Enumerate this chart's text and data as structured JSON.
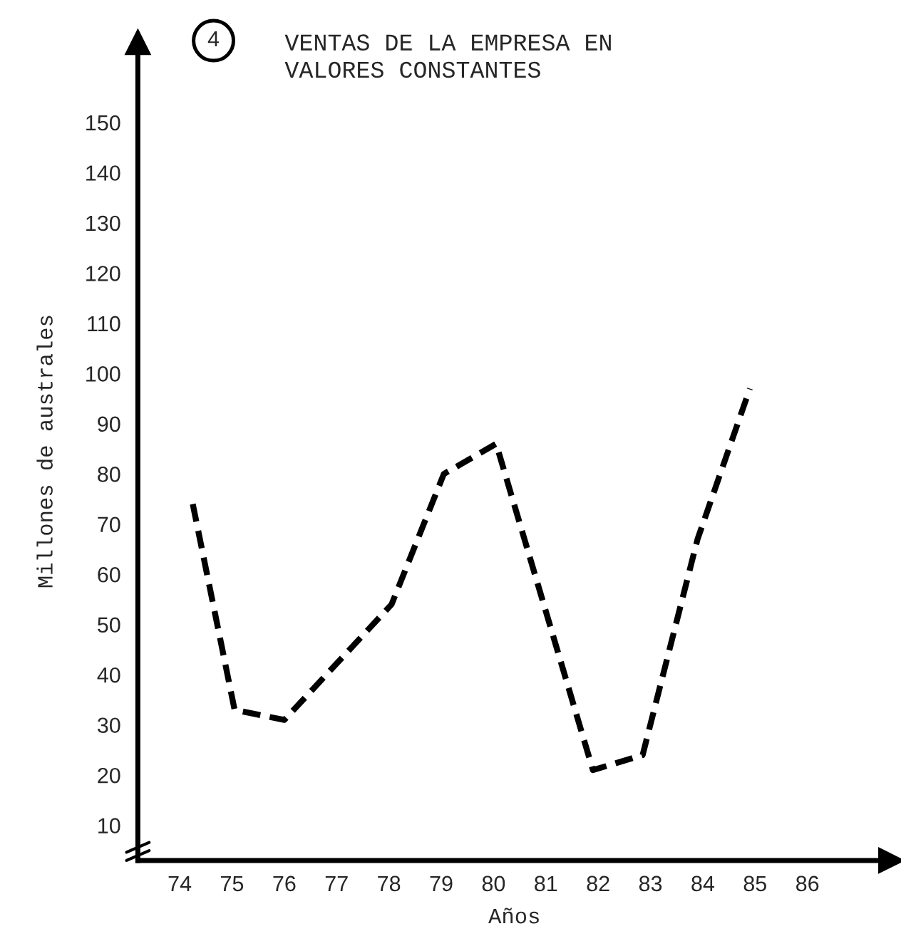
{
  "chart_data": {
    "type": "line",
    "title": "VENTAS DE LA EMPRESA EN\nVALORES CONSTANTES",
    "annotations": [
      "4"
    ],
    "xlabel": "Años",
    "ylabel": "Millones de australes",
    "x": [
      74.25,
      75.05,
      76.0,
      78.05,
      79.05,
      80.05,
      81.9,
      82.85,
      83.9,
      84.9
    ],
    "series": [
      {
        "color": "#000000",
        "values": [
          74,
          33,
          31,
          54,
          80,
          86,
          21,
          24,
          67,
          97
        ]
      }
    ],
    "xlim": [
      73.2,
      87.6
    ],
    "xticks": [
      74,
      75,
      76,
      77,
      78,
      79,
      80,
      81,
      82,
      83,
      84,
      85,
      86
    ],
    "ylim": [
      3,
      166
    ],
    "yticks": [
      10,
      20,
      30,
      40,
      50,
      60,
      70,
      80,
      90,
      100,
      110,
      120,
      130,
      140,
      150
    ],
    "grid": false,
    "legend": false,
    "marker": "none",
    "line_style": "dashed"
  }
}
